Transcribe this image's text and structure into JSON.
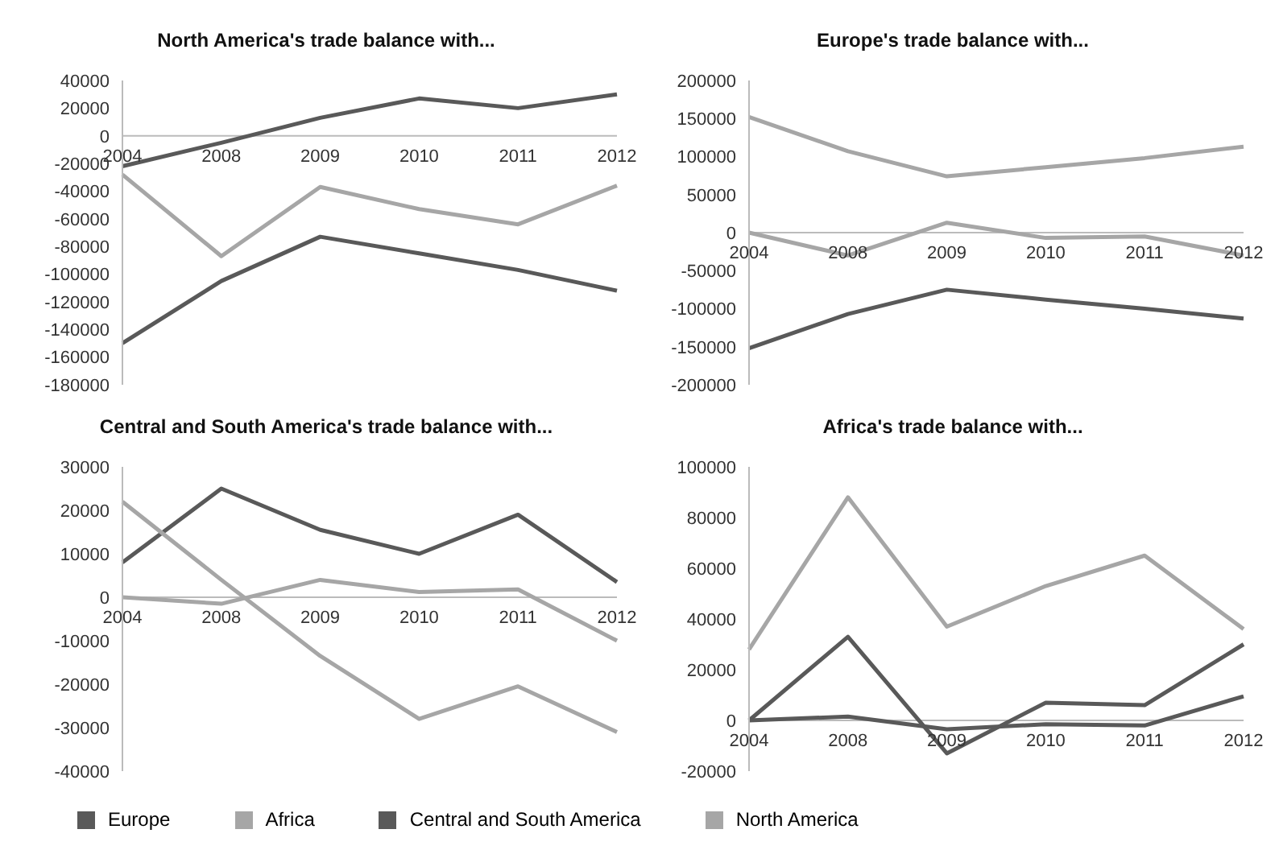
{
  "chart_data": [
    {
      "type": "line",
      "title": "North America's trade balance with...",
      "categories": [
        "2004",
        "2008",
        "2009",
        "2010",
        "2011",
        "2012"
      ],
      "ylim": [
        -180000,
        40000
      ],
      "yticks": [
        -180000,
        -160000,
        -140000,
        -120000,
        -100000,
        -80000,
        -60000,
        -40000,
        -20000,
        0,
        20000,
        40000
      ],
      "grid": false,
      "legend": "bottom",
      "marker": "none",
      "series": [
        {
          "name": "Europe",
          "color": "#595959",
          "values": [
            -150000,
            -105000,
            -73000,
            -85000,
            -97000,
            -112000
          ]
        },
        {
          "name": "Africa",
          "color": "#a6a6a6",
          "values": [
            -28000,
            -87000,
            -37000,
            -53000,
            -64000,
            -36000
          ]
        },
        {
          "name": "Central and South America",
          "color": "#595959",
          "values": [
            -22000,
            -5000,
            13000,
            27000,
            20000,
            30000
          ]
        }
      ]
    },
    {
      "type": "line",
      "title": "Europe's trade balance with...",
      "categories": [
        "2004",
        "2008",
        "2009",
        "2010",
        "2011",
        "2012"
      ],
      "ylim": [
        -200000,
        200000
      ],
      "yticks": [
        -200000,
        -150000,
        -100000,
        -50000,
        0,
        50000,
        100000,
        150000,
        200000
      ],
      "grid": false,
      "legend": "bottom",
      "marker": "none",
      "series": [
        {
          "name": "North America",
          "color": "#a6a6a6",
          "values": [
            152000,
            107000,
            74000,
            86000,
            98000,
            113000
          ]
        },
        {
          "name": "Africa",
          "color": "#a6a6a6",
          "values": [
            0,
            -30000,
            13000,
            -7000,
            -5000,
            -30000
          ]
        },
        {
          "name": "Central and South America",
          "color": "#595959",
          "values": [
            -152000,
            -107000,
            -75000,
            -88000,
            -100000,
            -113000
          ]
        }
      ]
    },
    {
      "type": "line",
      "title": "Central and South America's trade balance with...",
      "categories": [
        "2004",
        "2008",
        "2009",
        "2010",
        "2011",
        "2012"
      ],
      "ylim": [
        -40000,
        30000
      ],
      "yticks": [
        -40000,
        -30000,
        -20000,
        -10000,
        0,
        10000,
        20000,
        30000
      ],
      "grid": false,
      "legend": "bottom",
      "marker": "none",
      "series": [
        {
          "name": "Europe",
          "color": "#595959",
          "values": [
            8000,
            25000,
            15500,
            10000,
            19000,
            3500
          ]
        },
        {
          "name": "Africa",
          "color": "#a6a6a6",
          "values": [
            0,
            -1500,
            4000,
            1200,
            1800,
            -10000
          ]
        },
        {
          "name": "North America",
          "color": "#a6a6a6",
          "values": [
            22000,
            4000,
            -13500,
            -28000,
            -20500,
            -31000
          ]
        }
      ]
    },
    {
      "type": "line",
      "title": "Africa's trade balance with...",
      "categories": [
        "2004",
        "2008",
        "2009",
        "2010",
        "2011",
        "2012"
      ],
      "ylim": [
        -20000,
        100000
      ],
      "yticks": [
        -20000,
        0,
        20000,
        40000,
        60000,
        80000,
        100000
      ],
      "grid": false,
      "legend": "bottom",
      "marker": "none",
      "series": [
        {
          "name": "Europe",
          "color": "#595959",
          "values": [
            0,
            33000,
            -13000,
            7000,
            6000,
            30000
          ]
        },
        {
          "name": "North America",
          "color": "#a6a6a6",
          "values": [
            28000,
            88000,
            37000,
            53000,
            65000,
            36000
          ]
        },
        {
          "name": "Central and South America",
          "color": "#595959",
          "values": [
            0,
            1500,
            -3500,
            -1500,
            -2000,
            9500
          ]
        }
      ]
    }
  ]
}
